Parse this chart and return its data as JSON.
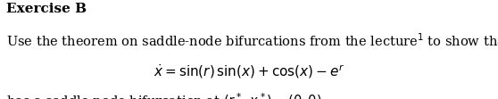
{
  "title": "Exercise B",
  "line1": "Use the theorem on saddle-node bifurcations from the lecture",
  "superscript1": "1",
  "line1_end": " to show that",
  "line3_start": "has a saddle-node bifurcation at ",
  "bg_color": "#ffffff",
  "text_color": "#000000",
  "title_fontsize": 11,
  "body_fontsize": 10.5,
  "formula_fontsize": 11
}
